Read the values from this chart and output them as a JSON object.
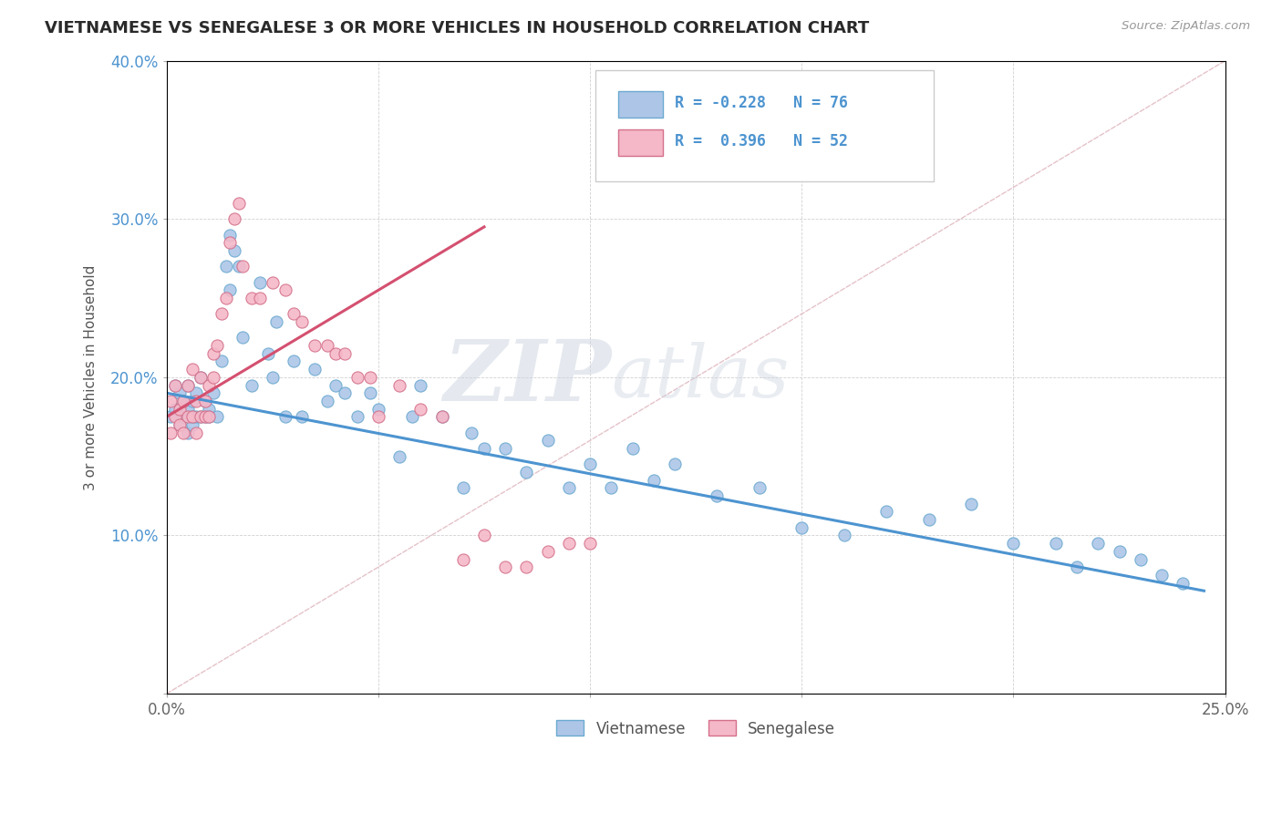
{
  "title": "VIETNAMESE VS SENEGALESE 3 OR MORE VEHICLES IN HOUSEHOLD CORRELATION CHART",
  "source": "Source: ZipAtlas.com",
  "ylabel": "3 or more Vehicles in Household",
  "watermark_zip": "ZIP",
  "watermark_atlas": "atlas",
  "legend_vietnamese": "Vietnamese",
  "legend_senegalese": "Senegalese",
  "legend_r_viet": "R = -0.228",
  "legend_n_viet": "N = 76",
  "legend_r_sene": "R =  0.396",
  "legend_n_sene": "N = 52",
  "viet_color": "#adc6e8",
  "viet_edge": "#6baad0",
  "sene_color": "#f5b8c8",
  "sene_edge": "#d4708a",
  "trend_viet_color": "#4d94d0",
  "trend_sene_color": "#d45070",
  "diag_color": "#e0b8c0",
  "bg_color": "#ffffff",
  "viet_x": [
    0.001,
    0.002,
    0.002,
    0.003,
    0.003,
    0.004,
    0.004,
    0.005,
    0.005,
    0.005,
    0.006,
    0.006,
    0.006,
    0.007,
    0.007,
    0.008,
    0.008,
    0.009,
    0.009,
    0.01,
    0.01,
    0.011,
    0.012,
    0.013,
    0.014,
    0.015,
    0.015,
    0.016,
    0.017,
    0.018,
    0.02,
    0.022,
    0.024,
    0.025,
    0.026,
    0.028,
    0.03,
    0.032,
    0.035,
    0.038,
    0.04,
    0.042,
    0.045,
    0.048,
    0.05,
    0.055,
    0.058,
    0.06,
    0.065,
    0.07,
    0.072,
    0.075,
    0.08,
    0.085,
    0.09,
    0.095,
    0.1,
    0.105,
    0.11,
    0.115,
    0.12,
    0.13,
    0.14,
    0.15,
    0.16,
    0.17,
    0.18,
    0.19,
    0.2,
    0.21,
    0.215,
    0.22,
    0.225,
    0.23,
    0.235,
    0.24
  ],
  "viet_y": [
    0.175,
    0.195,
    0.18,
    0.17,
    0.19,
    0.185,
    0.175,
    0.18,
    0.165,
    0.195,
    0.17,
    0.185,
    0.175,
    0.19,
    0.175,
    0.2,
    0.175,
    0.185,
    0.175,
    0.18,
    0.175,
    0.19,
    0.175,
    0.21,
    0.27,
    0.29,
    0.255,
    0.28,
    0.27,
    0.225,
    0.195,
    0.26,
    0.215,
    0.2,
    0.235,
    0.175,
    0.21,
    0.175,
    0.205,
    0.185,
    0.195,
    0.19,
    0.175,
    0.19,
    0.18,
    0.15,
    0.175,
    0.195,
    0.175,
    0.13,
    0.165,
    0.155,
    0.155,
    0.14,
    0.16,
    0.13,
    0.145,
    0.13,
    0.155,
    0.135,
    0.145,
    0.125,
    0.13,
    0.105,
    0.1,
    0.115,
    0.11,
    0.12,
    0.095,
    0.095,
    0.08,
    0.095,
    0.09,
    0.085,
    0.075,
    0.07
  ],
  "sene_x": [
    0.001,
    0.001,
    0.002,
    0.002,
    0.003,
    0.003,
    0.004,
    0.004,
    0.005,
    0.005,
    0.006,
    0.006,
    0.007,
    0.007,
    0.008,
    0.008,
    0.009,
    0.009,
    0.01,
    0.01,
    0.011,
    0.011,
    0.012,
    0.013,
    0.014,
    0.015,
    0.016,
    0.017,
    0.018,
    0.02,
    0.022,
    0.025,
    0.028,
    0.03,
    0.032,
    0.035,
    0.038,
    0.04,
    0.042,
    0.045,
    0.048,
    0.05,
    0.055,
    0.06,
    0.065,
    0.07,
    0.075,
    0.08,
    0.085,
    0.09,
    0.095,
    0.1
  ],
  "sene_y": [
    0.165,
    0.185,
    0.175,
    0.195,
    0.18,
    0.17,
    0.185,
    0.165,
    0.195,
    0.175,
    0.205,
    0.175,
    0.185,
    0.165,
    0.2,
    0.175,
    0.185,
    0.175,
    0.195,
    0.175,
    0.2,
    0.215,
    0.22,
    0.24,
    0.25,
    0.285,
    0.3,
    0.31,
    0.27,
    0.25,
    0.25,
    0.26,
    0.255,
    0.24,
    0.235,
    0.22,
    0.22,
    0.215,
    0.215,
    0.2,
    0.2,
    0.175,
    0.195,
    0.18,
    0.175,
    0.085,
    0.1,
    0.08,
    0.08,
    0.09,
    0.095,
    0.095
  ],
  "viet_trend_x": [
    0.0,
    0.245
  ],
  "viet_trend_y": [
    0.19,
    0.065
  ],
  "sene_trend_x": [
    0.0,
    0.075
  ],
  "sene_trend_y": [
    0.175,
    0.295
  ],
  "xlim": [
    0.0,
    0.25
  ],
  "ylim": [
    0.0,
    0.4
  ],
  "xticks": [
    0.0,
    0.05,
    0.1,
    0.15,
    0.2,
    0.25
  ],
  "xticklabels": [
    "0.0%",
    "",
    "",
    "",
    "",
    "25.0%"
  ],
  "yticks": [
    0.0,
    0.1,
    0.2,
    0.3,
    0.4
  ],
  "yticklabels": [
    "",
    "10.0%",
    "20.0%",
    "30.0%",
    "40.0%"
  ]
}
